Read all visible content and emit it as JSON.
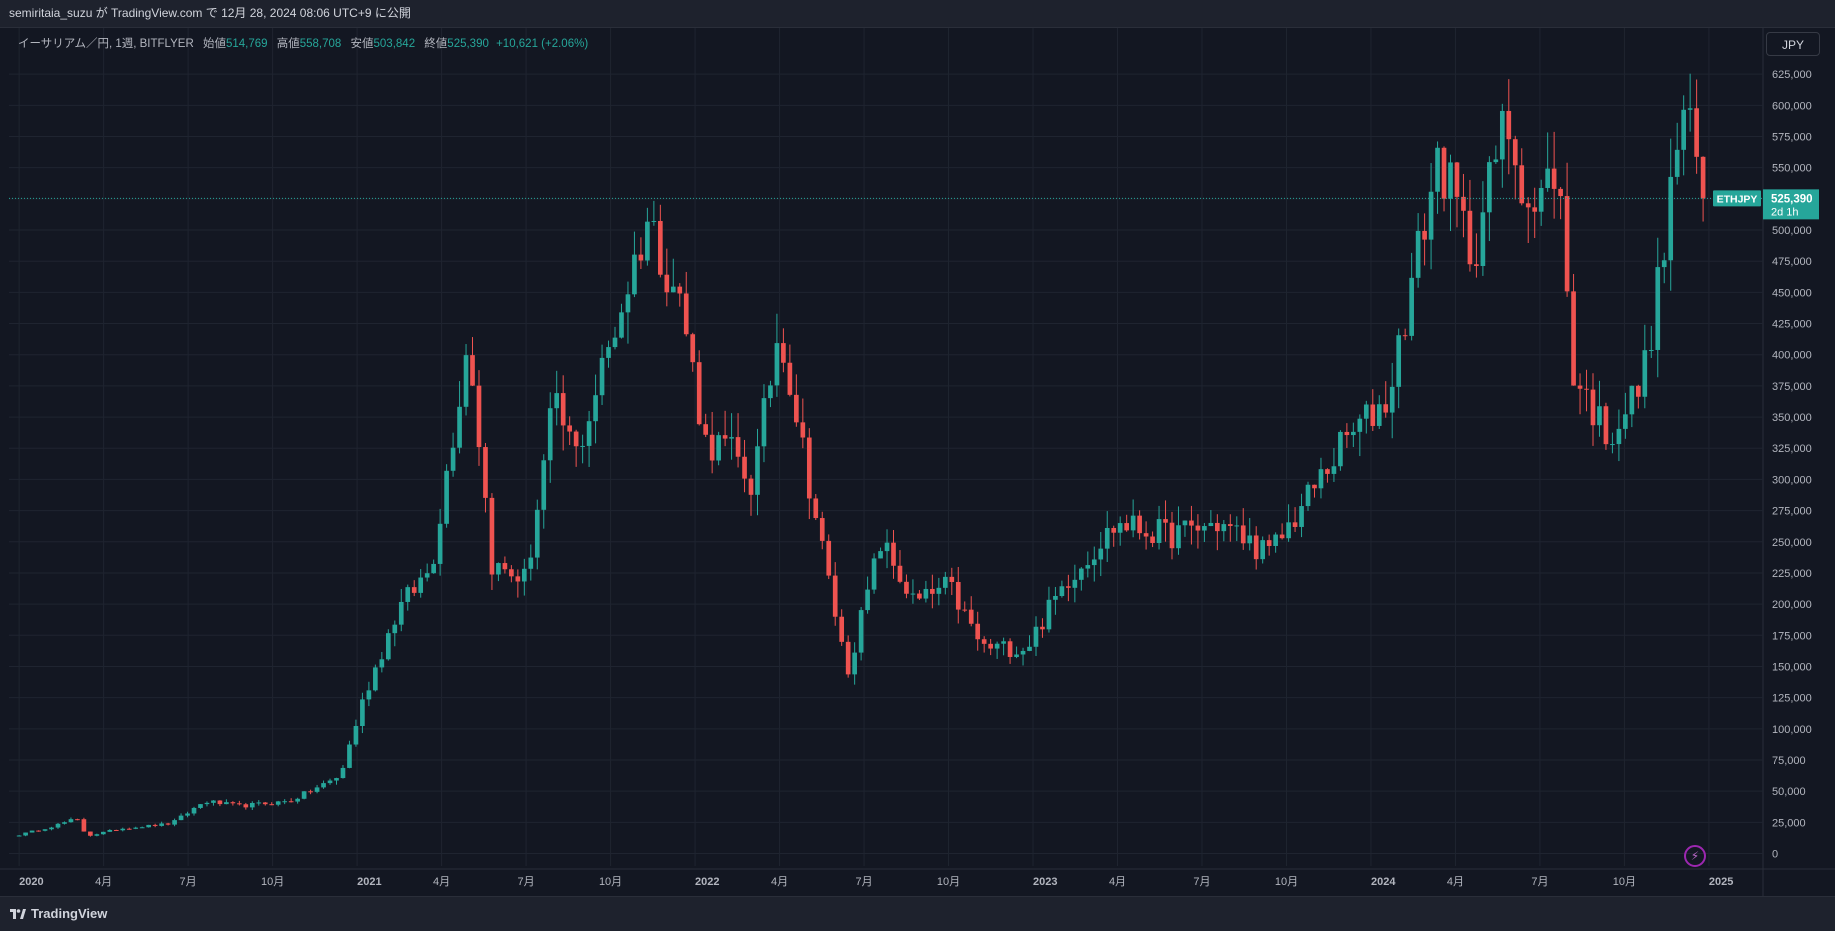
{
  "header": {
    "publish_text": "semiritaia_suzu が TradingView.com で 12月 28, 2024 08:06 UTC+9 に公開"
  },
  "legend": {
    "symbol": "イーサリアム／円, 1週, BITFLYER",
    "open_label": "始値",
    "open": "514,769",
    "high_label": "高値",
    "high": "558,708",
    "low_label": "安値",
    "low": "503,842",
    "close_label": "終値",
    "close": "525,390",
    "change": "+10,621 (+2.06%)"
  },
  "currency_button": "JPY",
  "price_tag": {
    "symbol": "ETHJPY",
    "price": "525,390",
    "countdown": "2d 1h"
  },
  "footer": {
    "brand": "TradingView"
  },
  "icons": {
    "bolt": "lightning-icon",
    "logo": "tradingview-logo-icon"
  },
  "colors": {
    "up": "#26a69a",
    "down": "#ef5350",
    "background": "#131722",
    "grid": "#1f2430"
  },
  "chart_data": {
    "type": "candlestick",
    "title": "イーサリアム／円, 1週, BITFLYER",
    "y_unit": "JPY",
    "y_ticks": [
      "0",
      "25,000",
      "50,000",
      "75,000",
      "100,000",
      "125,000",
      "150,000",
      "175,000",
      "200,000",
      "225,000",
      "250,000",
      "275,000",
      "300,000",
      "325,000",
      "350,000",
      "375,000",
      "400,000",
      "425,000",
      "450,000",
      "475,000",
      "500,000",
      "525,000",
      "550,000",
      "575,000",
      "600,000",
      "625,000"
    ],
    "ylim": [
      -10000,
      662000
    ],
    "x_ticks": [
      {
        "label": "2020",
        "t": 2020.0
      },
      {
        "label": "4月",
        "t": 2020.25
      },
      {
        "label": "7月",
        "t": 2020.5
      },
      {
        "label": "10月",
        "t": 2020.75
      },
      {
        "label": "2021",
        "t": 2021.0
      },
      {
        "label": "4月",
        "t": 2021.25
      },
      {
        "label": "7月",
        "t": 2021.5
      },
      {
        "label": "10月",
        "t": 2021.75
      },
      {
        "label": "2022",
        "t": 2022.0
      },
      {
        "label": "4月",
        "t": 2022.25
      },
      {
        "label": "7月",
        "t": 2022.5
      },
      {
        "label": "10月",
        "t": 2022.75
      },
      {
        "label": "2023",
        "t": 2023.0
      },
      {
        "label": "4月",
        "t": 2023.25
      },
      {
        "label": "7月",
        "t": 2023.5
      },
      {
        "label": "10月",
        "t": 2023.75
      },
      {
        "label": "2024",
        "t": 2024.0
      },
      {
        "label": "4月",
        "t": 2024.25
      },
      {
        "label": "7月",
        "t": 2024.5
      },
      {
        "label": "10月",
        "t": 2024.75
      },
      {
        "label": "2025",
        "t": 2025.0
      }
    ],
    "xlim": [
      2019.97,
      2025.16
    ],
    "last_price": 525390,
    "anchors": [
      [
        2020.0,
        15000
      ],
      [
        2020.1,
        22000
      ],
      [
        2020.17,
        28000
      ],
      [
        2020.2,
        14000
      ],
      [
        2020.3,
        20000
      ],
      [
        2020.45,
        24000
      ],
      [
        2020.55,
        42000
      ],
      [
        2020.65,
        38000
      ],
      [
        2020.8,
        42000
      ],
      [
        2020.95,
        62000
      ],
      [
        2021.02,
        125000
      ],
      [
        2021.12,
        195000
      ],
      [
        2021.22,
        230000
      ],
      [
        2021.33,
        415000
      ],
      [
        2021.4,
        230000
      ],
      [
        2021.5,
        220000
      ],
      [
        2021.58,
        360000
      ],
      [
        2021.65,
        320000
      ],
      [
        2021.75,
        410000
      ],
      [
        2021.86,
        510000
      ],
      [
        2021.96,
        440000
      ],
      [
        2022.03,
        330000
      ],
      [
        2022.1,
        325000
      ],
      [
        2022.17,
        295000
      ],
      [
        2022.25,
        425000
      ],
      [
        2022.35,
        280000
      ],
      [
        2022.45,
        145000
      ],
      [
        2022.55,
        250000
      ],
      [
        2022.65,
        200000
      ],
      [
        2022.75,
        215000
      ],
      [
        2022.85,
        165000
      ],
      [
        2022.98,
        165000
      ],
      [
        2023.1,
        220000
      ],
      [
        2023.25,
        265000
      ],
      [
        2023.4,
        255000
      ],
      [
        2023.55,
        265000
      ],
      [
        2023.7,
        240000
      ],
      [
        2023.8,
        280000
      ],
      [
        2023.92,
        330000
      ],
      [
        2024.05,
        365000
      ],
      [
        2024.13,
        470000
      ],
      [
        2024.2,
        560000
      ],
      [
        2024.3,
        480000
      ],
      [
        2024.4,
        590000
      ],
      [
        2024.48,
        510000
      ],
      [
        2024.55,
        555000
      ],
      [
        2024.6,
        385000
      ],
      [
        2024.7,
        335000
      ],
      [
        2024.8,
        375000
      ],
      [
        2024.86,
        470000
      ],
      [
        2024.92,
        600000
      ],
      [
        2024.99,
        525390
      ]
    ]
  }
}
